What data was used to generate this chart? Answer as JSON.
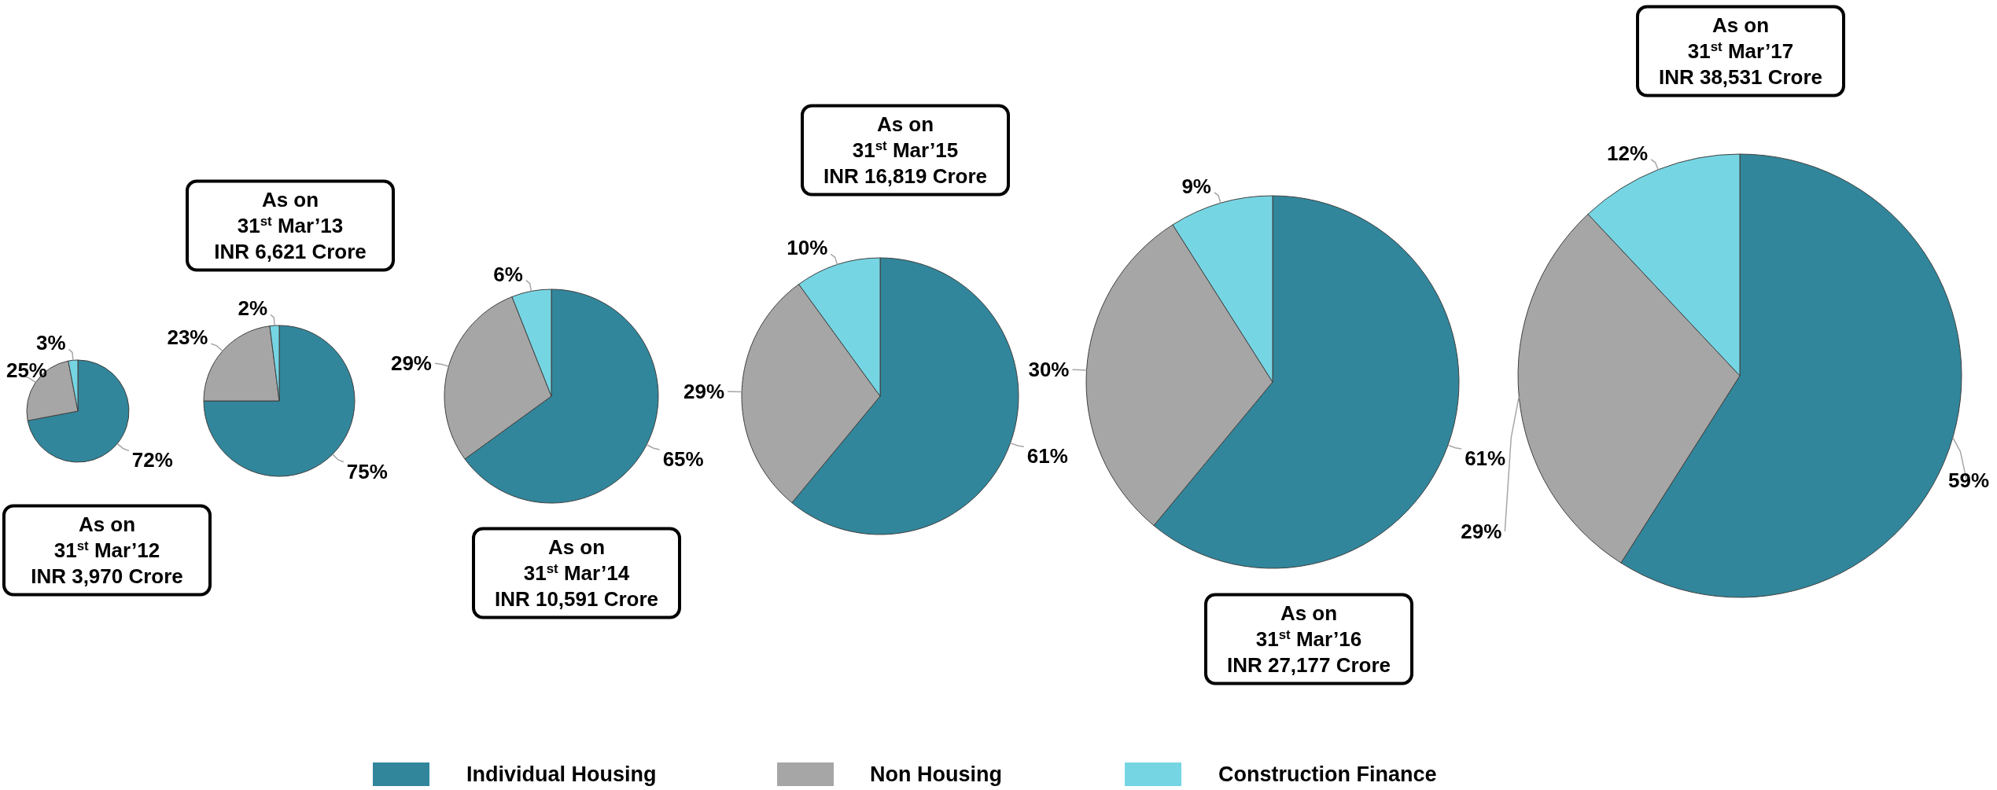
{
  "chart_data": [
    {
      "type": "pie",
      "title": "As on\n31$^{st}$ Mar’12\nINR 3,970 Crore",
      "categories": [
        "Individual Housing",
        "Non Housing",
        "Construction Finance"
      ],
      "values": [
        72,
        25,
        3
      ],
      "value_labels": [
        "72%",
        "25%",
        "3%"
      ],
      "colors": [
        "#31869b",
        "#a6a6a6",
        "#76d5e3"
      ],
      "legend": "bottom"
    },
    {
      "type": "pie",
      "title": "As on\n31$^{st}$ Mar’13\nINR 6,621 Crore",
      "categories": [
        null,
        null,
        null
      ],
      "values": [
        75,
        23,
        2
      ],
      "value_labels": [
        "75%",
        "23%",
        "2%"
      ],
      "colors": [
        "#31869b",
        "#a6a6a6",
        "#76d5e3"
      ]
    },
    {
      "type": "pie",
      "title": "As on\n31$^{st}$ Mar’14\nINR 10,591 Crore",
      "categories": [
        null,
        null,
        null
      ],
      "values": [
        65,
        29,
        6
      ],
      "value_labels": [
        "65%",
        "29%",
        "6%"
      ],
      "colors": [
        "#31869b",
        "#a6a6a6",
        "#76d5e3"
      ]
    },
    {
      "type": "pie",
      "title": "As on\n31$^{st}$ Mar’15\nINR 16,819 Crore",
      "categories": [
        null,
        null,
        null
      ],
      "values": [
        61,
        29,
        10
      ],
      "value_labels": [
        "61%",
        "29%",
        "10%"
      ],
      "colors": [
        "#31869b",
        "#a6a6a6",
        "#76d5e3"
      ]
    },
    {
      "type": "pie",
      "title": "As on\n31$^{st}$ Mar’16\nINR 27,177 Crore",
      "categories": [
        null,
        null,
        null
      ],
      "values": [
        61,
        30,
        9
      ],
      "value_labels": [
        "61%",
        "30%",
        "9%"
      ],
      "colors": [
        "#31869b",
        "#a6a6a6",
        "#76d5e3"
      ]
    },
    {
      "type": "pie",
      "title": "As on\n31$^{st}$ Mar’17\nINR 38,531 Crore",
      "categories": [
        null,
        null,
        null
      ],
      "values": [
        59,
        29,
        12
      ],
      "value_labels": [
        "59%",
        "29%",
        "12%"
      ],
      "colors": [
        "#31869b",
        "#a6a6a6",
        "#76d5e3"
      ]
    }
  ]
}
